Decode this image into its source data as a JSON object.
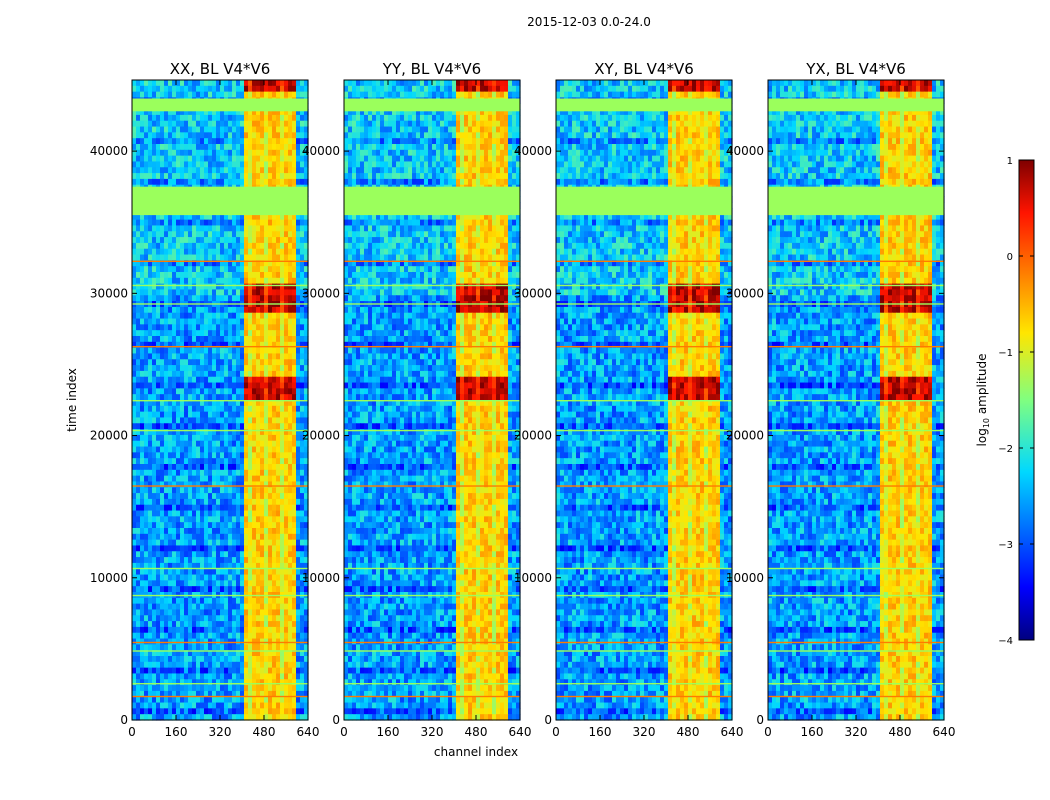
{
  "suptitle": "2015-12-03 0.0-24.0",
  "chart_data": {
    "type": "heatmap",
    "xlabel": "channel index",
    "ylabel": "time index",
    "xlim": [
      0,
      640
    ],
    "ylim": [
      0,
      45000
    ],
    "xticks": [
      0,
      160,
      320,
      480,
      640
    ],
    "yticks": [
      0,
      10000,
      20000,
      30000,
      40000
    ],
    "panels": [
      {
        "title": "XX, BL V4*V6"
      },
      {
        "title": "YY, BL V4*V6"
      },
      {
        "title": "XY, BL V4*V6"
      },
      {
        "title": "YX, BL V4*V6"
      }
    ],
    "colorbar": {
      "label": "log10 amplitude",
      "label_main": "log",
      "label_sub": "10",
      "label_tail": " amplitude",
      "range": [
        -4,
        1
      ],
      "ticks": [
        "1",
        "0",
        "−1",
        "−2",
        "−3",
        "−4"
      ],
      "colormap": "jet"
    },
    "features": {
      "high_amplitude_channel_band": [
        405,
        600
      ],
      "strong_rows_time": [
        [
          44000,
          45000
        ],
        [
          28500,
          30500
        ],
        [
          22500,
          24000
        ]
      ],
      "flagged_time_blocks": [
        [
          42800,
          43700
        ],
        [
          35500,
          37500
        ]
      ]
    }
  }
}
